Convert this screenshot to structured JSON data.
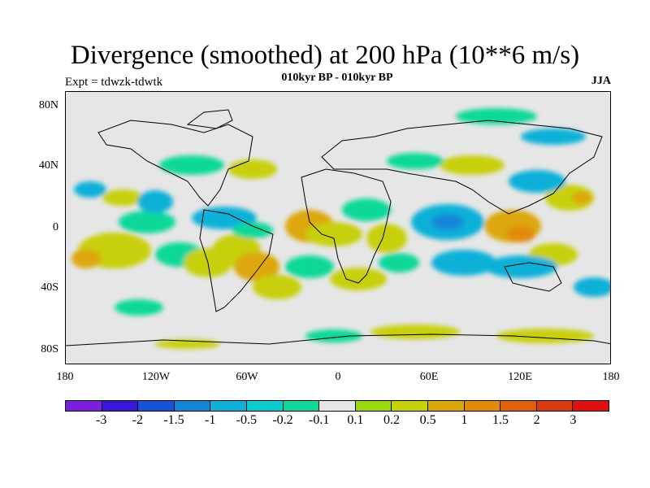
{
  "title": "Divergence (smoothed) at 200 hPa (10**6 m/s)",
  "expt": "Expt = tdwzk-tdwtk",
  "period": "010kyr BP - 010kyr BP",
  "season": "JJA",
  "map": {
    "lat_labels": [
      "80N",
      "40N",
      "0",
      "40S",
      "80S"
    ],
    "lon_labels": [
      "180",
      "120W",
      "60W",
      "0",
      "60E",
      "120E",
      "180"
    ],
    "background_color": "#e6e6e6"
  },
  "colorbar": {
    "colors": [
      "#7a1fe0",
      "#3a16d8",
      "#1653d8",
      "#1287d8",
      "#0fb1d8",
      "#0bcccc",
      "#10d89a",
      "#e6e6e6",
      "#9ad80d",
      "#c8d00a",
      "#dca808",
      "#e28a0a",
      "#e0600c",
      "#d93a10",
      "#e01010"
    ],
    "labels": [
      "-3",
      "-2",
      "-1.5",
      "-1",
      "-0.5",
      "-0.2",
      "-0.1",
      "0.1",
      "0.2",
      "0.5",
      "1",
      "1.5",
      "2",
      "3"
    ]
  }
}
